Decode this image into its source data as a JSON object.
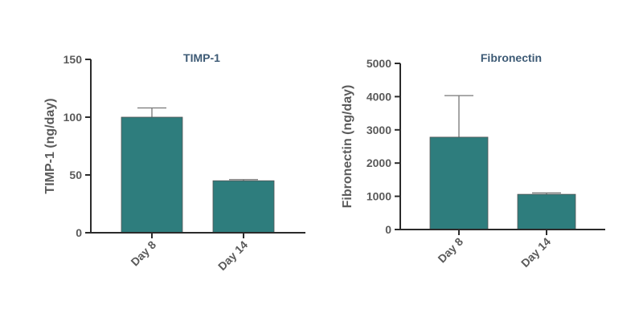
{
  "chart_data": [
    {
      "type": "bar",
      "title": "TIMP-1",
      "ylabel": "TIMP-1 (ng/day)",
      "xlabel": "",
      "categories": [
        "Day 8",
        "Day 14"
      ],
      "values": [
        100,
        45
      ],
      "errors": [
        8,
        1
      ],
      "ylim": [
        0,
        150
      ],
      "yticks": [
        0,
        50,
        100,
        150
      ],
      "grid": false
    },
    {
      "type": "bar",
      "title": "Fibronectin",
      "ylabel": "Fibronectin (ng/day)",
      "xlabel": "",
      "categories": [
        "Day 8",
        "Day 14"
      ],
      "values": [
        2780,
        1060
      ],
      "errors": [
        1250,
        40
      ],
      "ylim": [
        0,
        5000
      ],
      "yticks": [
        0,
        1000,
        2000,
        3000,
        4000,
        5000
      ],
      "grid": false
    }
  ],
  "colors": {
    "bar": "#2e7d7d",
    "title": "#3d5a75"
  }
}
